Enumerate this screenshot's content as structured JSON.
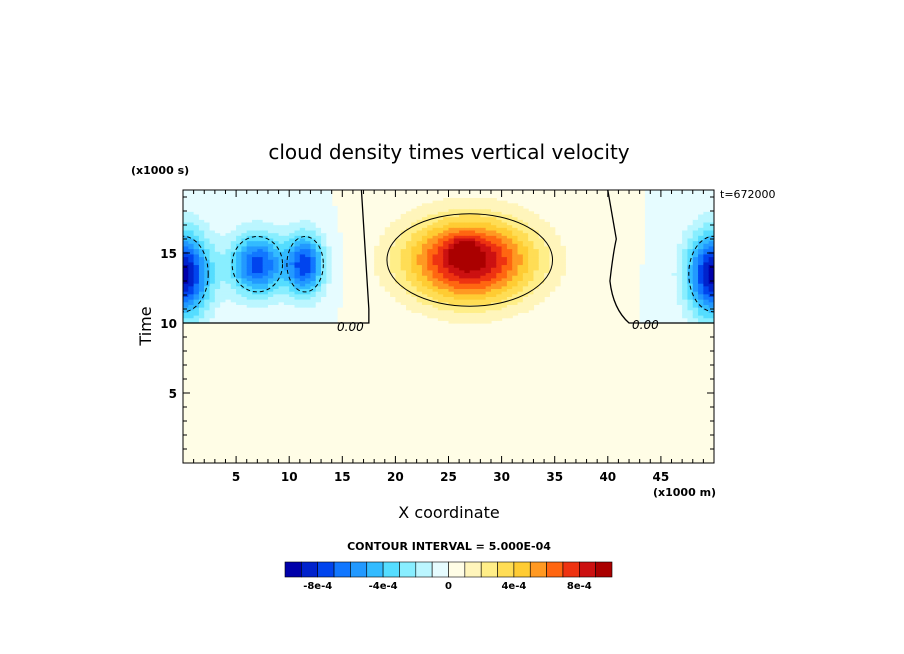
{
  "chart_data": {
    "type": "heatmap",
    "title": "cloud density times vertical velocity",
    "xlabel": "X coordinate",
    "ylabel": "Time",
    "x_units": "(x1000 m)",
    "y_units": "(x1000 s)",
    "time_label": "t=672000",
    "xlim": [
      0,
      50
    ],
    "ylim": [
      0,
      19.5
    ],
    "xticks": [
      "5",
      "10",
      "15",
      "20",
      "25",
      "30",
      "35",
      "40",
      "45"
    ],
    "xtick_values": [
      5,
      10,
      15,
      20,
      25,
      30,
      35,
      40,
      45
    ],
    "yticks": [
      "5",
      "10",
      "15"
    ],
    "ytick_values": [
      5,
      10,
      15
    ],
    "contour_interval_text": "CONTOUR INTERVAL = 5.000E-04",
    "contour_labels": [
      "0.00",
      "0.00"
    ],
    "colorbar": {
      "levels": [
        -0.001,
        -0.0009,
        -0.0008,
        -0.0007,
        -0.0006,
        -0.0005,
        -0.0004,
        -0.0003,
        -0.0002,
        -0.0001,
        0,
        0.0001,
        0.0002,
        0.0003,
        0.0004,
        0.0005,
        0.0006,
        0.0007,
        0.0008,
        0.0009,
        0.001
      ],
      "colors": [
        "#0000aa",
        "#0022cc",
        "#0044ee",
        "#1177ff",
        "#2299ff",
        "#33bbff",
        "#55ddff",
        "#88eeff",
        "#bbf6ff",
        "#e6fcff",
        "#fffde6",
        "#fff5bb",
        "#ffee88",
        "#ffdd55",
        "#ffcc33",
        "#ff9922",
        "#ff6611",
        "#ee3311",
        "#cc1111",
        "#aa0000"
      ],
      "tick_labels": [
        "-8e-4",
        "-4e-4",
        "0",
        "4e-4",
        "8e-4"
      ],
      "tick_values": [
        -0.0008,
        -0.0004,
        0,
        0.0004,
        0.0008
      ]
    },
    "features": [
      {
        "kind": "warm",
        "x": 27,
        "y": 14.5,
        "sx": 6,
        "sy": 3,
        "amp": 0.00095
      },
      {
        "kind": "warm",
        "x": 26.5,
        "y": 15.2,
        "sx": 1.2,
        "sy": 0.9,
        "amp": 0.0003
      },
      {
        "kind": "cold",
        "x": 0,
        "y": 13.5,
        "sx": 2.5,
        "sy": 3,
        "amp": -0.00095
      },
      {
        "kind": "cold",
        "x": 50,
        "y": 13.5,
        "sx": 2.5,
        "sy": 3,
        "amp": -0.00095
      },
      {
        "kind": "cold",
        "x": 7,
        "y": 14.2,
        "sx": 2.5,
        "sy": 2.2,
        "amp": -0.00075
      },
      {
        "kind": "cold",
        "x": 11.5,
        "y": 14.2,
        "sx": 1.8,
        "sy": 2.2,
        "amp": -0.00075
      }
    ],
    "zero_line_y": 10,
    "active_y_top": 19.5
  }
}
